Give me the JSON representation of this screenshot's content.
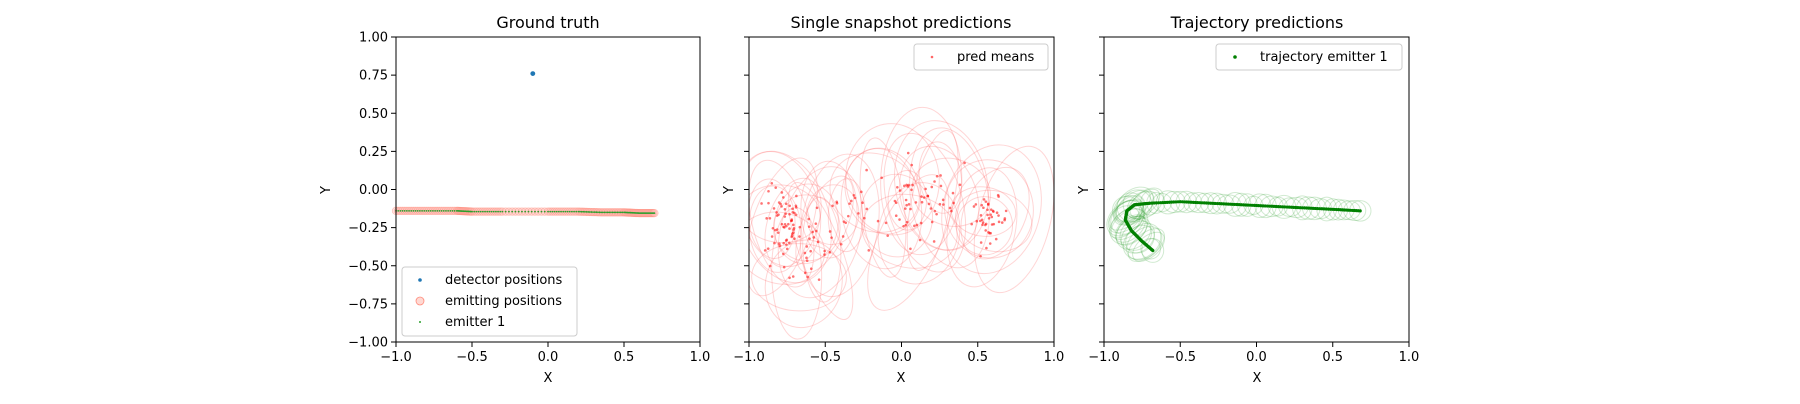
{
  "chart_data": [
    {
      "type": "scatter",
      "title": "Ground truth",
      "xlabel": "X",
      "ylabel": "Y",
      "xlim": [
        -1.0,
        1.0
      ],
      "ylim": [
        -1.0,
        1.0
      ],
      "xticks": [
        "−1.0",
        "−0.5",
        "0.0",
        "0.5",
        "1.0"
      ],
      "yticks": [
        "1.00",
        "0.75",
        "0.50",
        "0.25",
        "0.00",
        "−0.25",
        "−0.50",
        "−0.75",
        "−1.00"
      ],
      "legend_position": "lower-left",
      "series": [
        {
          "name": "detector positions",
          "color": "#1f77b4",
          "x": [
            -0.1
          ],
          "y": [
            0.76
          ]
        },
        {
          "name": "emitting positions",
          "color": "#ffb3a8",
          "path_x": [
            -1.0,
            -0.8,
            -0.6,
            -0.5,
            -0.3,
            0.0,
            0.2,
            0.35,
            0.5,
            0.6,
            0.7
          ],
          "path_y": [
            -0.14,
            -0.14,
            -0.14,
            -0.145,
            -0.145,
            -0.145,
            -0.145,
            -0.15,
            -0.15,
            -0.155,
            -0.155
          ]
        },
        {
          "name": "emitter 1",
          "color": "#2ca02c",
          "path_x": [
            -1.0,
            -0.8,
            -0.6,
            -0.5,
            -0.3,
            0.0,
            0.2,
            0.35,
            0.5,
            0.6,
            0.7
          ],
          "path_y": [
            -0.14,
            -0.14,
            -0.14,
            -0.145,
            -0.145,
            -0.145,
            -0.145,
            -0.15,
            -0.15,
            -0.155,
            -0.155
          ]
        }
      ]
    },
    {
      "type": "scatter",
      "title": "Single snapshot predictions",
      "xlabel": "X",
      "ylabel": "Y",
      "xlim": [
        -1.0,
        1.0
      ],
      "ylim": [
        -1.0,
        1.0
      ],
      "xticks": [
        "−1.0",
        "−0.5",
        "0.0",
        "0.5",
        "1.0"
      ],
      "legend_position": "top-right",
      "series": [
        {
          "name": "pred means",
          "color": "#ff0000",
          "clusters": [
            {
              "cx": -0.78,
              "cy": -0.22,
              "sx": 0.06,
              "sy": 0.12,
              "n": 60
            },
            {
              "cx": -0.6,
              "cy": -0.35,
              "sx": 0.12,
              "sy": 0.18,
              "n": 30
            },
            {
              "cx": -0.35,
              "cy": -0.15,
              "sx": 0.15,
              "sy": 0.12,
              "n": 25
            },
            {
              "cx": 0.05,
              "cy": -0.1,
              "sx": 0.1,
              "sy": 0.15,
              "n": 35
            },
            {
              "cx": 0.25,
              "cy": 0.0,
              "sx": 0.08,
              "sy": 0.1,
              "n": 20
            },
            {
              "cx": 0.58,
              "cy": -0.2,
              "sx": 0.06,
              "sy": 0.07,
              "n": 45
            }
          ]
        }
      ]
    },
    {
      "type": "scatter",
      "title": "Trajectory predictions",
      "xlabel": "X",
      "ylabel": "Y",
      "xlim": [
        -1.0,
        1.0
      ],
      "ylim": [
        -1.0,
        1.0
      ],
      "xticks": [
        "−1.0",
        "−0.5",
        "0.0",
        "0.5",
        "1.0"
      ],
      "legend_position": "top-right",
      "series": [
        {
          "name": "trajectory emitter 1",
          "color": "#008000",
          "path_x": [
            -0.68,
            -0.75,
            -0.82,
            -0.86,
            -0.85,
            -0.8,
            -0.7,
            -0.5,
            -0.3,
            -0.1,
            0.1,
            0.3,
            0.5,
            0.68
          ],
          "path_y": [
            -0.4,
            -0.34,
            -0.27,
            -0.2,
            -0.14,
            -0.1,
            -0.09,
            -0.08,
            -0.09,
            -0.1,
            -0.11,
            -0.12,
            -0.13,
            -0.14
          ]
        }
      ]
    }
  ]
}
